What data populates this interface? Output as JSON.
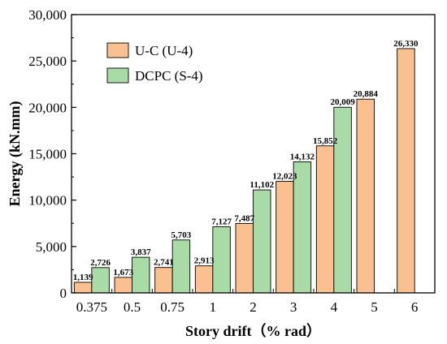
{
  "chart_data": {
    "type": "bar",
    "title": "",
    "xlabel": "Story drift（% rad）",
    "ylabel": "Energy (kN.mm)",
    "categories": [
      "0.375",
      "0.5",
      "0.75",
      "1",
      "2",
      "3",
      "4",
      "5",
      "6"
    ],
    "ylim": [
      0,
      30000
    ],
    "yticks": [
      0,
      5000,
      10000,
      15000,
      20000,
      25000,
      30000
    ],
    "ytick_labels": [
      "0",
      "5,000",
      "10,000",
      "15,000",
      "20,000",
      "25,000",
      "30,000"
    ],
    "grid": false,
    "legend_position": "top-left",
    "series": [
      {
        "name": "U-C (U-4)",
        "color": "#fac090",
        "values": [
          1139,
          1673,
          2741,
          2913,
          7487,
          12023,
          15852,
          20884,
          26330
        ],
        "labels": [
          "1,139",
          "1,673",
          "2,741",
          "2,913",
          "7,487",
          "12,023",
          "15,852",
          "20,884",
          "26,330"
        ]
      },
      {
        "name": "DCPC (S-4)",
        "color": "#a9dba7",
        "values": [
          2726,
          3837,
          5703,
          7127,
          11102,
          14132,
          20009,
          null,
          null
        ],
        "labels": [
          "2,726",
          "3,837",
          "5,703",
          "7,127",
          "11,102",
          "14,132",
          "20,009",
          "",
          ""
        ]
      }
    ]
  }
}
